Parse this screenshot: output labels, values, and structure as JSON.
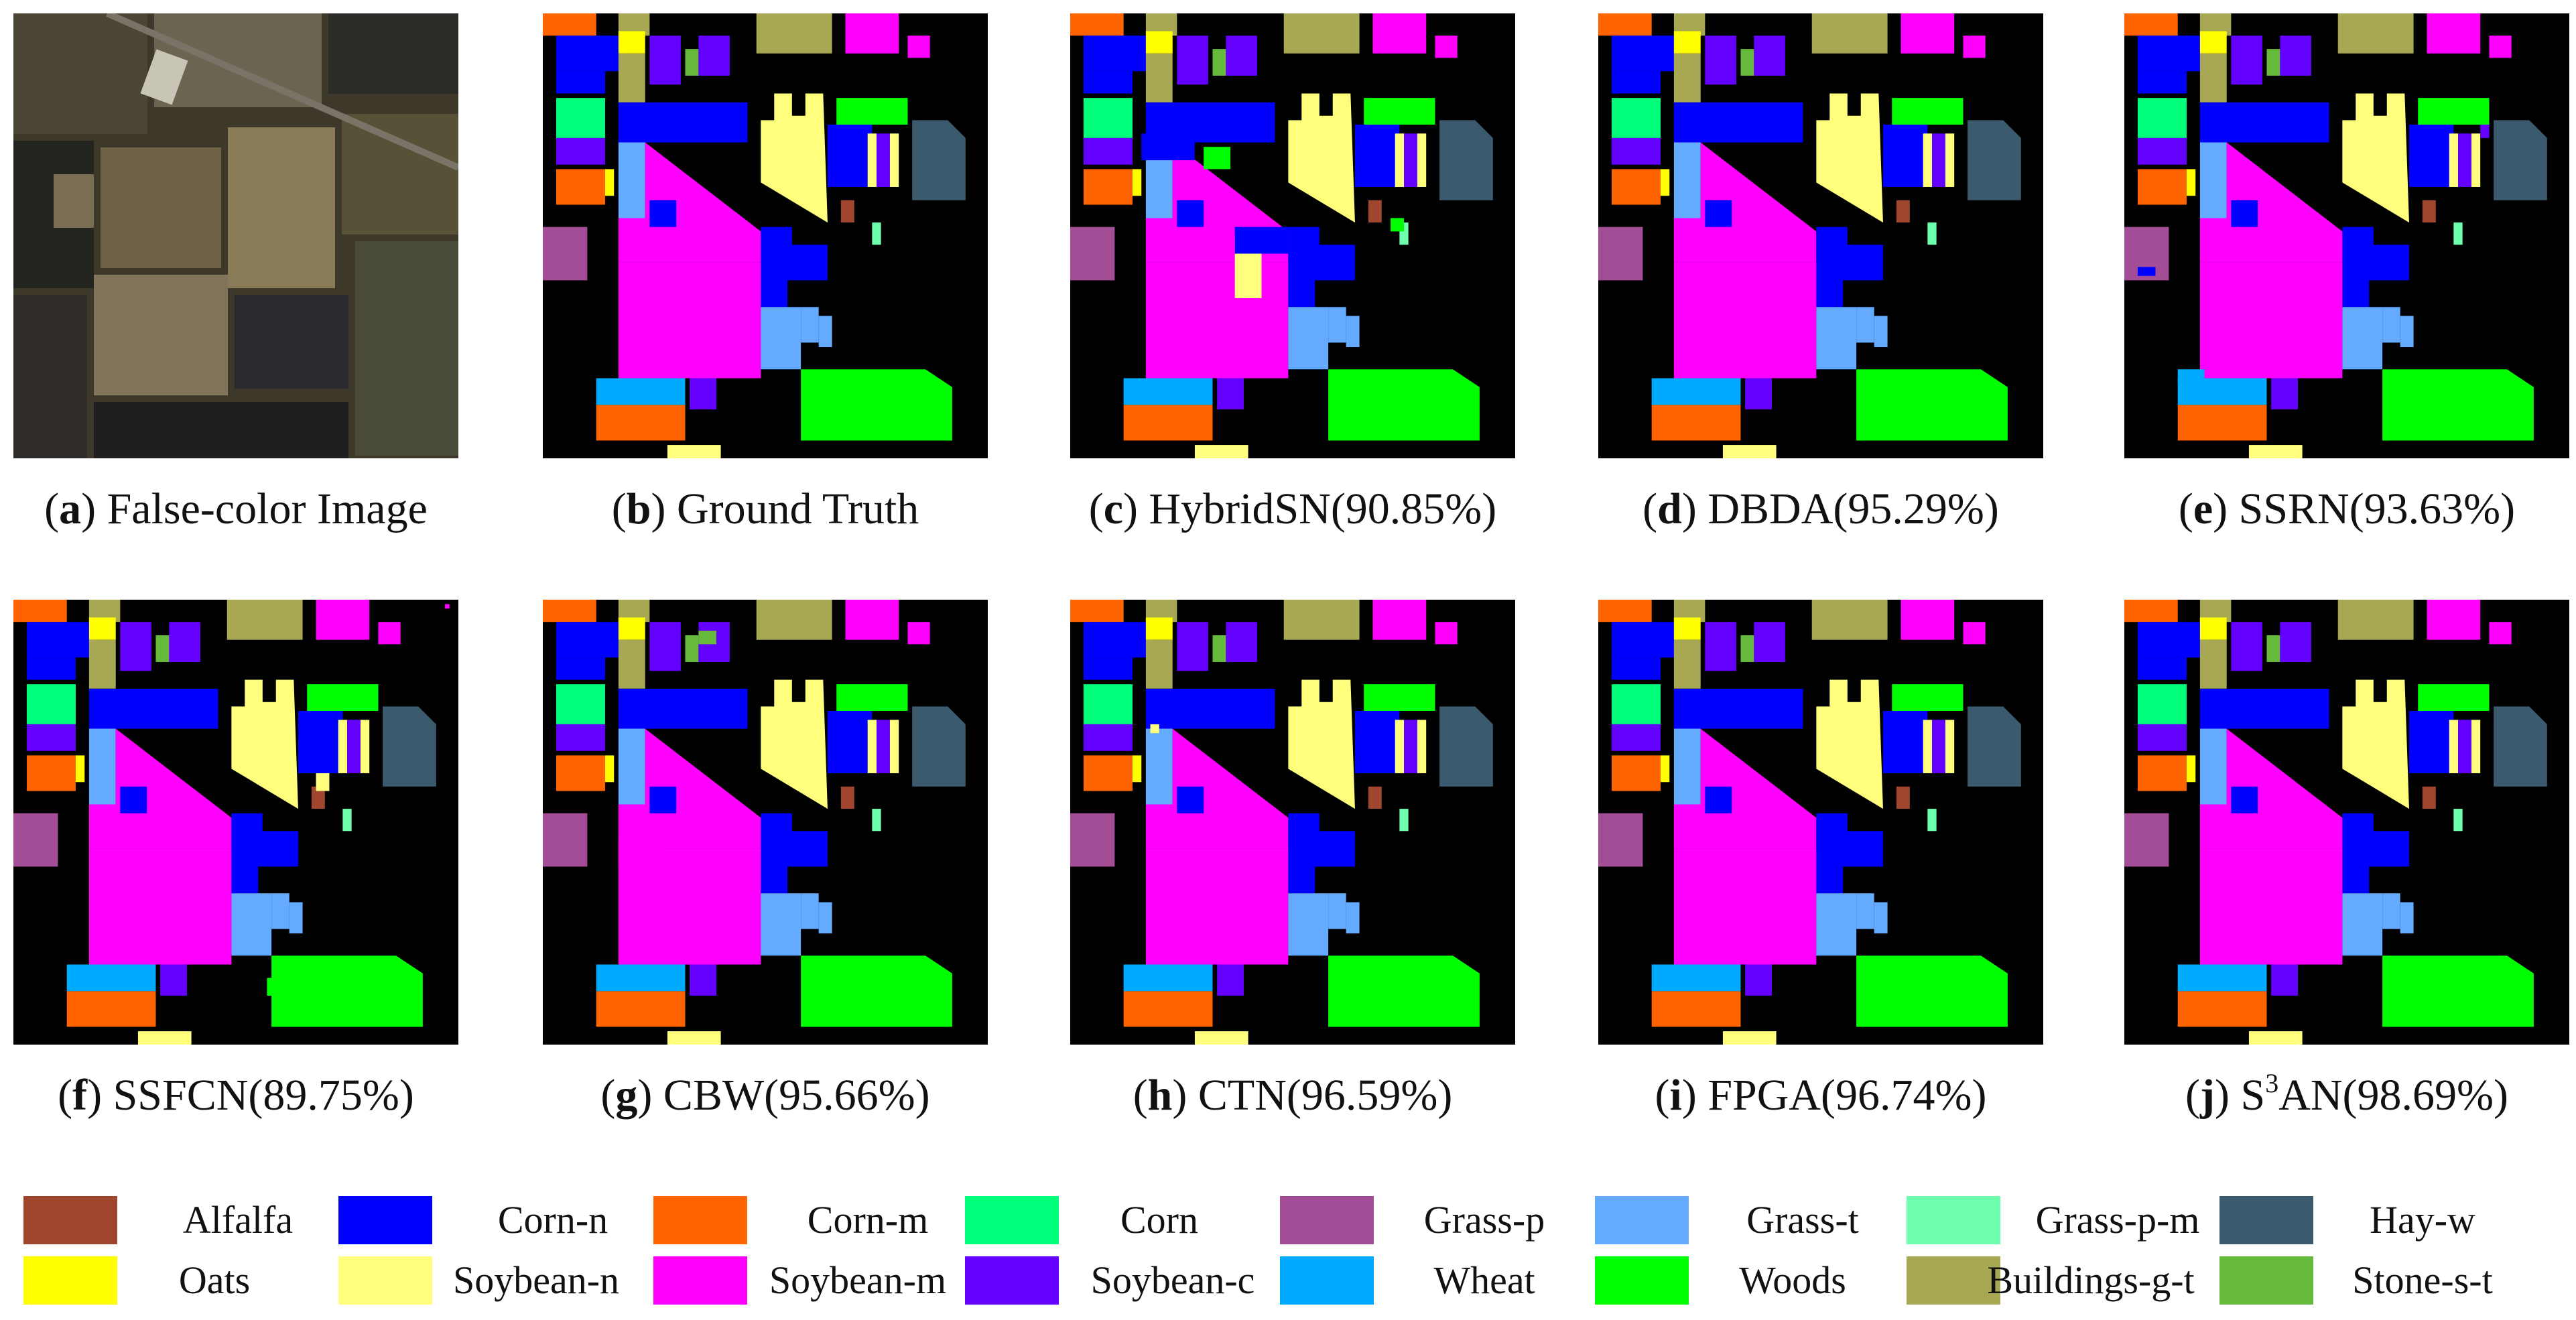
{
  "figure": {
    "panels": [
      {
        "id": "a",
        "letter": "a",
        "text": " False-color Image",
        "kind": "false-color"
      },
      {
        "id": "b",
        "letter": "b",
        "text": " Ground Truth",
        "kind": "ground-truth"
      },
      {
        "id": "c",
        "letter": "c",
        "text": " HybridSN(90.85%)",
        "kind": "prediction"
      },
      {
        "id": "d",
        "letter": "d",
        "text": " DBDA(95.29%)",
        "kind": "prediction"
      },
      {
        "id": "e",
        "letter": "e",
        "text": " SSRN(93.63%)",
        "kind": "prediction"
      },
      {
        "id": "f",
        "letter": "f",
        "text": " SSFCN(89.75%)",
        "kind": "prediction"
      },
      {
        "id": "g",
        "letter": "g",
        "text": " CBW(95.66%)",
        "kind": "prediction"
      },
      {
        "id": "h",
        "letter": "h",
        "text": " CTN(96.59%)",
        "kind": "prediction"
      },
      {
        "id": "i",
        "letter": "i",
        "text": " FPGA(96.74%)",
        "kind": "prediction"
      },
      {
        "id": "j",
        "letter": "j",
        "text_prefix": " S",
        "text_sup": "3",
        "text_suffix": "AN(98.69%)",
        "kind": "prediction"
      }
    ],
    "legend": [
      {
        "label": "Alfalfa",
        "color": "#A0452E"
      },
      {
        "label": "Corn-n",
        "color": "#0000FF"
      },
      {
        "label": "Corn-m",
        "color": "#FF6400"
      },
      {
        "label": "Corn",
        "color": "#00FF7A"
      },
      {
        "label": "Grass-p",
        "color": "#A24D95"
      },
      {
        "label": "Grass-t",
        "color": "#64AAFF"
      },
      {
        "label": "Grass-p-m",
        "color": "#6EFFAE"
      },
      {
        "label": "Hay-w",
        "color": "#3C5A6E"
      },
      {
        "label": "Oats",
        "color": "#FFFF00"
      },
      {
        "label": "Soybean-n",
        "color": "#FFFF7D"
      },
      {
        "label": "Soybean-m",
        "color": "#FF00FF"
      },
      {
        "label": "Soybean-c",
        "color": "#6400FF"
      },
      {
        "label": "Wheat",
        "color": "#00AAFF"
      },
      {
        "label": "Woods",
        "color": "#00FF00"
      },
      {
        "label": "Buildings-g-t",
        "color": "#A8A854"
      },
      {
        "label": "Stone-s-t",
        "color": "#66BB3C"
      }
    ]
  }
}
